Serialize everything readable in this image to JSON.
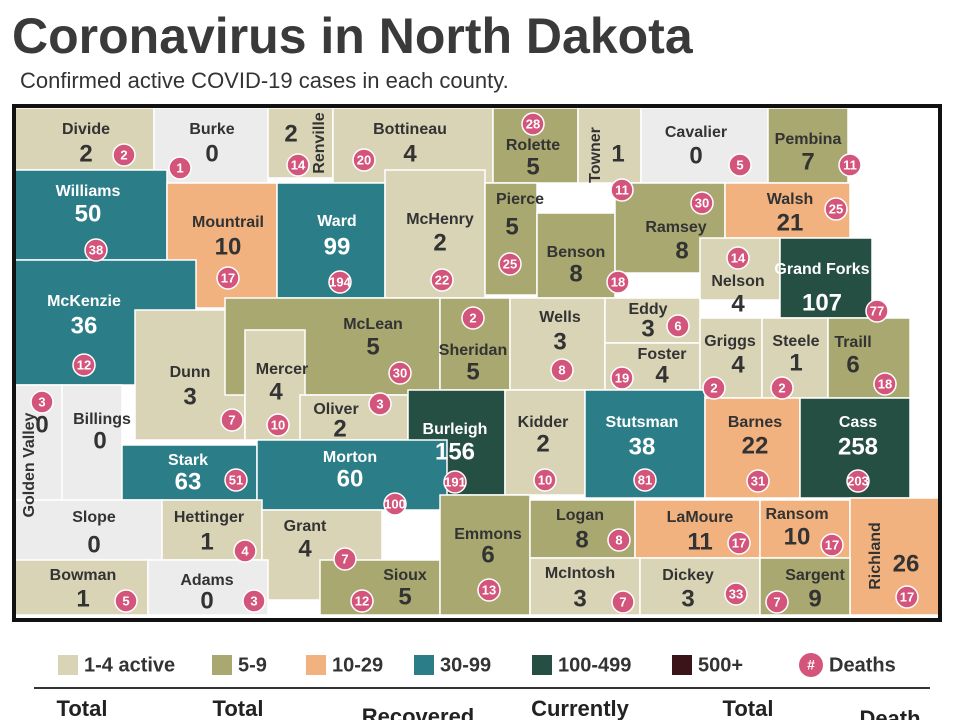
{
  "header": {
    "title": "Coronavirus in North Dakota",
    "subtitle": "Confirmed active COVID-19 cases in each county."
  },
  "counties": [
    {
      "name": "Divide",
      "active": 2,
      "deaths": 2,
      "color": "#d9d4b6"
    },
    {
      "name": "Burke",
      "active": 0,
      "deaths": 1,
      "color": "#ececec"
    },
    {
      "name": "Renville",
      "active": 2,
      "deaths": 14,
      "color": "#d9d4b6"
    },
    {
      "name": "Bottineau",
      "active": 4,
      "deaths": 20,
      "color": "#d9d4b6"
    },
    {
      "name": "Rolette",
      "active": 5,
      "deaths": 28,
      "color": "#a8a870"
    },
    {
      "name": "Towner",
      "active": 1,
      "deaths": 11,
      "color": "#d9d4b6"
    },
    {
      "name": "Cavalier",
      "active": 0,
      "deaths": 5,
      "color": "#ececec"
    },
    {
      "name": "Pembina",
      "active": 7,
      "deaths": 11,
      "color": "#a8a870"
    },
    {
      "name": "Williams",
      "active": 50,
      "deaths": 38,
      "color": "#2b7d88"
    },
    {
      "name": "Mountrail",
      "active": 10,
      "deaths": 17,
      "color": "#f2b27f"
    },
    {
      "name": "Ward",
      "active": 99,
      "deaths": 194,
      "color": "#2b7d88"
    },
    {
      "name": "McHenry",
      "active": 2,
      "deaths": 22,
      "color": "#d9d4b6"
    },
    {
      "name": "Pierce",
      "active": 5,
      "deaths": 25,
      "color": "#a8a870"
    },
    {
      "name": "Benson",
      "active": 8,
      "deaths": 18,
      "color": "#a8a870"
    },
    {
      "name": "Ramsey",
      "active": 8,
      "deaths": 30,
      "color": "#a8a870"
    },
    {
      "name": "Walsh",
      "active": 21,
      "deaths": 25,
      "color": "#f2b27f"
    },
    {
      "name": "Nelson",
      "active": 4,
      "deaths": 14,
      "color": "#d9d4b6"
    },
    {
      "name": "Grand Forks",
      "active": 107,
      "deaths": 77,
      "color": "#264f44"
    },
    {
      "name": "McKenzie",
      "active": 36,
      "deaths": 12,
      "color": "#2b7d88"
    },
    {
      "name": "Dunn",
      "active": 3,
      "deaths": 7,
      "color": "#d9d4b6"
    },
    {
      "name": "McLean",
      "active": 5,
      "deaths": 30,
      "color": "#a8a870"
    },
    {
      "name": "Sheridan",
      "active": 5,
      "deaths": 2,
      "color": "#a8a870"
    },
    {
      "name": "Wells",
      "active": 3,
      "deaths": 8,
      "color": "#d9d4b6"
    },
    {
      "name": "Eddy",
      "active": 3,
      "deaths": 6,
      "color": "#d9d4b6"
    },
    {
      "name": "Foster",
      "active": 4,
      "deaths": 19,
      "color": "#d9d4b6"
    },
    {
      "name": "Griggs",
      "active": 4,
      "deaths": 2,
      "color": "#d9d4b6"
    },
    {
      "name": "Steele",
      "active": 1,
      "deaths": 2,
      "color": "#d9d4b6"
    },
    {
      "name": "Traill",
      "active": 6,
      "deaths": 18,
      "color": "#a8a870"
    },
    {
      "name": "Golden Valley",
      "active": 0,
      "deaths": 3,
      "color": "#ececec"
    },
    {
      "name": "Billings",
      "active": 0,
      "deaths": null,
      "color": "#ececec"
    },
    {
      "name": "Mercer",
      "active": 4,
      "deaths": 10,
      "color": "#d9d4b6"
    },
    {
      "name": "Oliver",
      "active": 2,
      "deaths": 3,
      "color": "#d9d4b6"
    },
    {
      "name": "Burleigh",
      "active": 156,
      "deaths": 191,
      "color": "#264f44"
    },
    {
      "name": "Kidder",
      "active": 2,
      "deaths": 10,
      "color": "#d9d4b6"
    },
    {
      "name": "Stutsman",
      "active": 38,
      "deaths": 81,
      "color": "#2b7d88"
    },
    {
      "name": "Barnes",
      "active": 22,
      "deaths": 31,
      "color": "#f2b27f"
    },
    {
      "name": "Cass",
      "active": 258,
      "deaths": 203,
      "color": "#264f44"
    },
    {
      "name": "Stark",
      "active": 63,
      "deaths": 51,
      "color": "#2b7d88"
    },
    {
      "name": "Morton",
      "active": 60,
      "deaths": 100,
      "color": "#2b7d88"
    },
    {
      "name": "Slope",
      "active": 0,
      "deaths": null,
      "color": "#ececec"
    },
    {
      "name": "Hettinger",
      "active": 1,
      "deaths": 4,
      "color": "#d9d4b6"
    },
    {
      "name": "Grant",
      "active": 4,
      "deaths": 7,
      "color": "#d9d4b6"
    },
    {
      "name": "Sioux",
      "active": 5,
      "deaths": 12,
      "color": "#a8a870"
    },
    {
      "name": "Emmons",
      "active": 6,
      "deaths": 13,
      "color": "#a8a870"
    },
    {
      "name": "Logan",
      "active": 8,
      "deaths": 8,
      "color": "#a8a870"
    },
    {
      "name": "LaMoure",
      "active": 11,
      "deaths": 17,
      "color": "#f2b27f"
    },
    {
      "name": "Ransom",
      "active": 10,
      "deaths": 17,
      "color": "#f2b27f"
    },
    {
      "name": "Richland",
      "active": 26,
      "deaths": 17,
      "color": "#f2b27f"
    },
    {
      "name": "Bowman",
      "active": 1,
      "deaths": 5,
      "color": "#d9d4b6"
    },
    {
      "name": "Adams",
      "active": 0,
      "deaths": 3,
      "color": "#ececec"
    },
    {
      "name": "McIntosh",
      "active": 3,
      "deaths": 7,
      "color": "#d9d4b6"
    },
    {
      "name": "Dickey",
      "active": 3,
      "deaths": 33,
      "color": "#d9d4b6"
    },
    {
      "name": "Sargent",
      "active": 9,
      "deaths": 7,
      "color": "#a8a870"
    }
  ],
  "legend": {
    "items": [
      {
        "label": "1-4 active",
        "color": "#d9d4b6"
      },
      {
        "label": "5-9",
        "color": "#a8a870"
      },
      {
        "label": "10-29",
        "color": "#f2b27f"
      },
      {
        "label": "30-99",
        "color": "#2b7d88"
      },
      {
        "label": "100-499",
        "color": "#264f44"
      },
      {
        "label": "500+",
        "color": "#3a1418"
      }
    ],
    "deaths_symbol": "#",
    "deaths_label": "Deaths",
    "deaths_color": "#d4557c"
  },
  "footer": {
    "columns": [
      "Total",
      "Total",
      "Recovered",
      "Currently",
      "Total",
      "Death"
    ]
  }
}
